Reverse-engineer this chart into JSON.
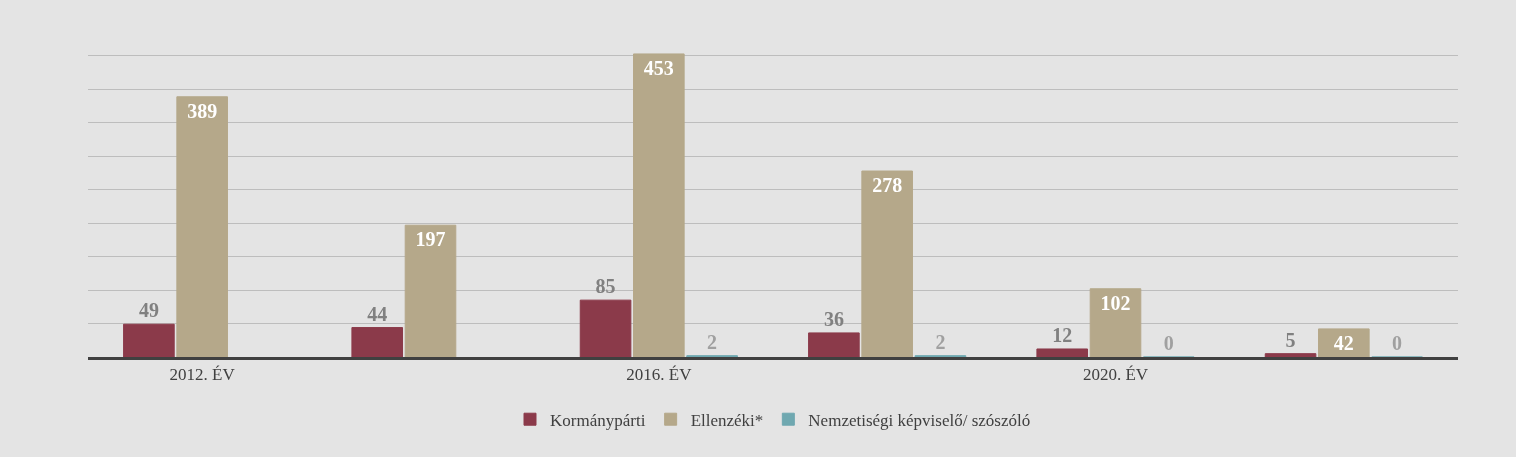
{
  "chart_data": {
    "type": "bar",
    "categories": [
      "2012. ÉV",
      null,
      "2016. ÉV",
      null,
      "2020. ÉV",
      null
    ],
    "series": [
      {
        "name": "Kormánypárti",
        "color": "#8b3a4a",
        "values": [
          49,
          44,
          85,
          36,
          12,
          5
        ]
      },
      {
        "name": "Ellenzéki*",
        "color": "#b5a88a",
        "values": [
          389,
          197,
          453,
          278,
          102,
          42
        ]
      },
      {
        "name": "Nemzetiségi képviselő/ szószóló",
        "color": "#6fa8b0",
        "values": [
          null,
          null,
          2,
          2,
          0,
          0
        ]
      }
    ],
    "data_labels": true,
    "yticks": [
      {
        "value": 0,
        "label": null
      },
      {
        "value": 50,
        "label": null
      },
      {
        "value": 100,
        "label": null
      },
      {
        "value": 150,
        "label": null
      },
      {
        "value": 200,
        "label": null
      },
      {
        "value": 250,
        "label": null
      },
      {
        "value": 300,
        "label": null
      },
      {
        "value": 350,
        "label": null
      },
      {
        "value": 400,
        "label": null
      },
      {
        "value": 450,
        "label": null
      }
    ],
    "tick_labels": "x",
    "grid": "y",
    "legend": "bottom"
  }
}
